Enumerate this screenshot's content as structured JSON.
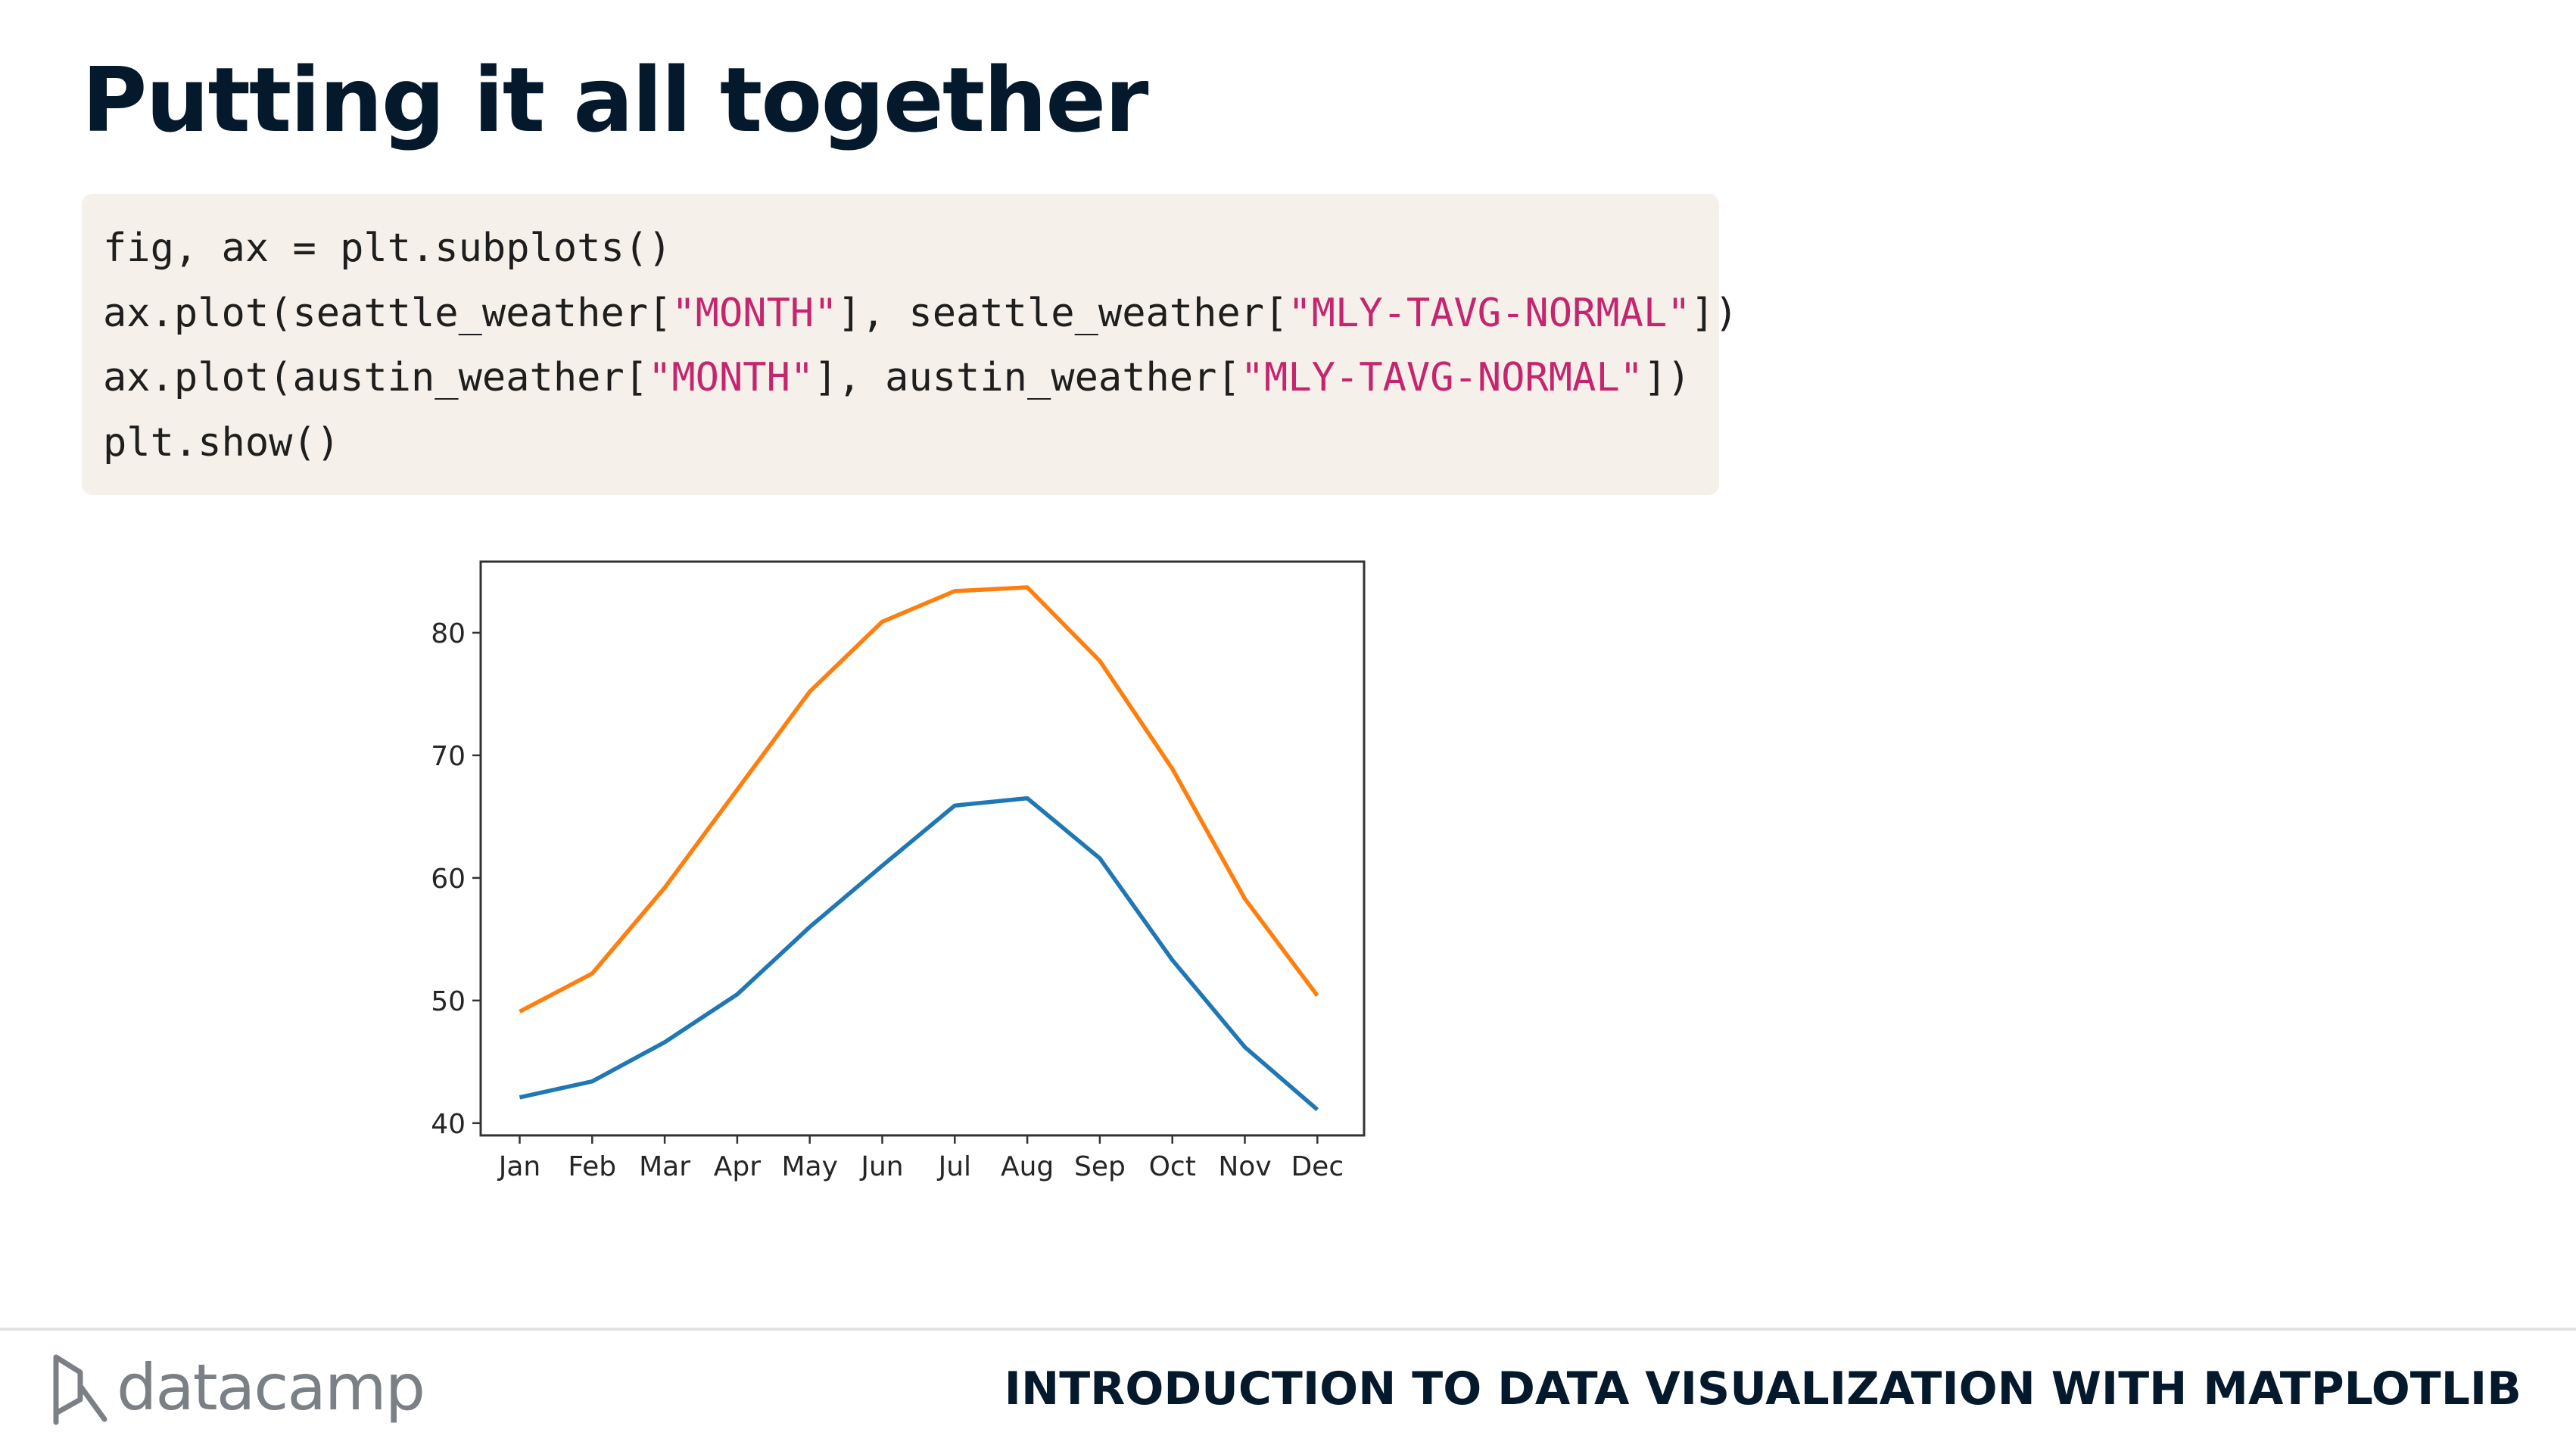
{
  "slide": {
    "title": "Putting it all together",
    "code_lines": [
      [
        {
          "text": "fig, ax = plt.subplots()",
          "kind": "plain"
        }
      ],
      [
        {
          "text": "ax.plot(seattle_weather[",
          "kind": "plain"
        },
        {
          "text": "\"MONTH\"",
          "kind": "string"
        },
        {
          "text": "], seattle_weather[",
          "kind": "plain"
        },
        {
          "text": "\"MLY-TAVG-NORMAL\"",
          "kind": "string"
        },
        {
          "text": "])",
          "kind": "plain"
        }
      ],
      [
        {
          "text": "ax.plot(austin_weather[",
          "kind": "plain"
        },
        {
          "text": "\"MONTH\"",
          "kind": "string"
        },
        {
          "text": "], austin_weather[",
          "kind": "plain"
        },
        {
          "text": "\"MLY-TAVG-NORMAL\"",
          "kind": "string"
        },
        {
          "text": "])",
          "kind": "plain"
        }
      ],
      [
        {
          "text": "plt.show()",
          "kind": "plain"
        }
      ]
    ]
  },
  "footer": {
    "brand": "datacamp",
    "course": "INTRODUCTION TO DATA VISUALIZATION WITH MATPLOTLIB"
  },
  "colors": {
    "code_string": "#c5256e",
    "series_1": "#1f77b4",
    "series_2": "#ff7f0e"
  },
  "chart_data": {
    "type": "line",
    "categories": [
      "Jan",
      "Feb",
      "Mar",
      "Apr",
      "May",
      "Jun",
      "Jul",
      "Aug",
      "Sep",
      "Oct",
      "Nov",
      "Dec"
    ],
    "series": [
      {
        "values": [
          42.1,
          43.4,
          46.6,
          50.5,
          56.0,
          61.0,
          65.9,
          66.5,
          61.6,
          53.3,
          46.2,
          41.1
        ]
      },
      {
        "values": [
          49.1,
          52.2,
          59.2,
          67.2,
          75.2,
          80.9,
          83.4,
          83.7,
          77.7,
          68.9,
          58.3,
          50.4
        ]
      }
    ],
    "yticks": [
      40,
      50,
      60,
      70,
      80
    ],
    "ylim": [
      39.0,
      85.8
    ],
    "grid": false
  }
}
